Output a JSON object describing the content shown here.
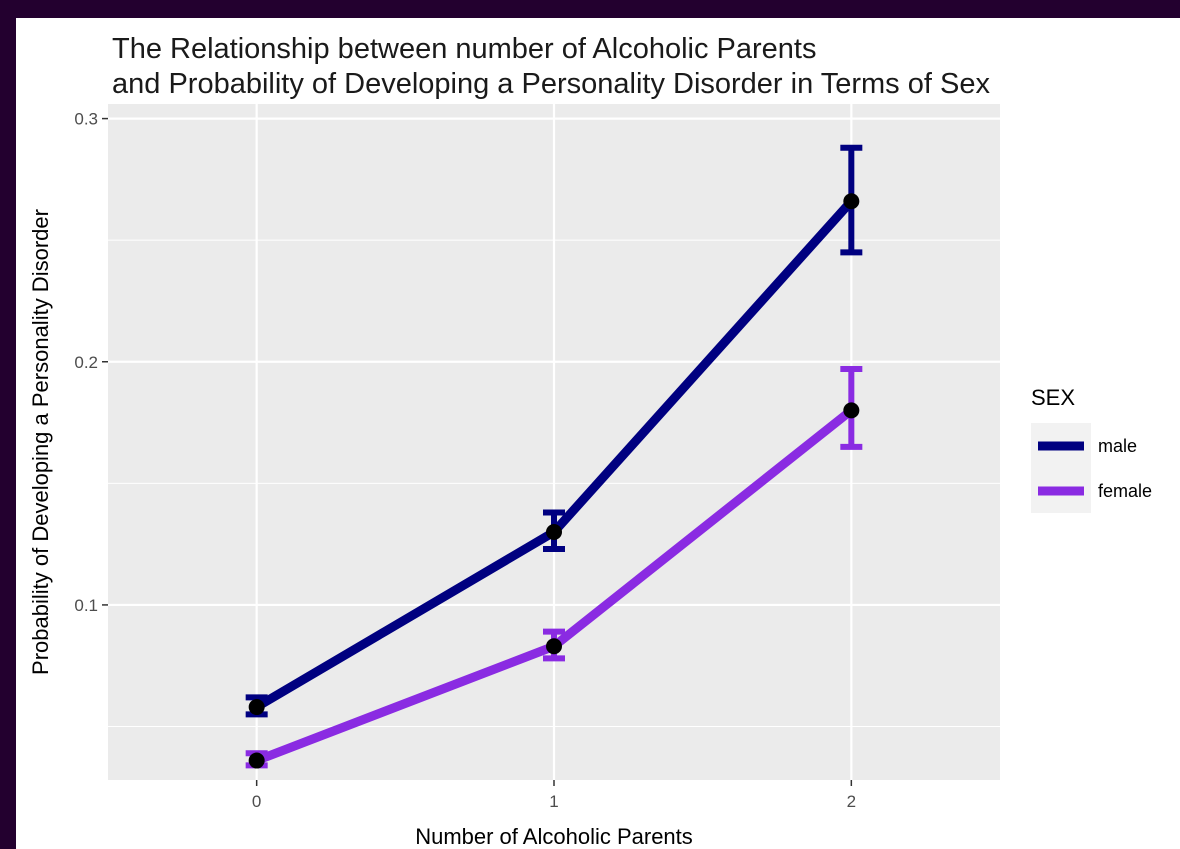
{
  "colors": {
    "page_frame": "#23002f",
    "panel_background": "#ebebeb",
    "grid": "#ffffff",
    "male": "#000080",
    "female": "#8a2be2",
    "point": "#000000"
  },
  "chart_data": {
    "type": "line",
    "title": [
      "The Relationship between number of Alcoholic Parents",
      "and Probability of Developing a Personality Disorder in Terms of Sex"
    ],
    "xlabel": "Number of Alcoholic Parents",
    "ylabel": "Probability of Developing a Personality Disorder",
    "categories": [
      "0",
      "1",
      "2"
    ],
    "x": [
      0,
      1,
      2
    ],
    "xlim": [
      -0.5,
      2.5
    ],
    "ylim": [
      0.028,
      0.306
    ],
    "y_ticks": [
      0.1,
      0.2,
      0.3
    ],
    "y_tick_labels": [
      "0.1",
      "0.2",
      "0.3"
    ],
    "grid": true,
    "legend": {
      "title": "SEX",
      "position": "right"
    },
    "series": [
      {
        "name": "male",
        "color": "#000080",
        "values": [
          0.058,
          0.13,
          0.266
        ],
        "error_low": [
          0.055,
          0.123,
          0.245
        ],
        "error_high": [
          0.062,
          0.138,
          0.288
        ]
      },
      {
        "name": "female",
        "color": "#8a2be2",
        "values": [
          0.036,
          0.083,
          0.18
        ],
        "error_low": [
          0.034,
          0.078,
          0.165
        ],
        "error_high": [
          0.039,
          0.089,
          0.197
        ]
      }
    ]
  }
}
